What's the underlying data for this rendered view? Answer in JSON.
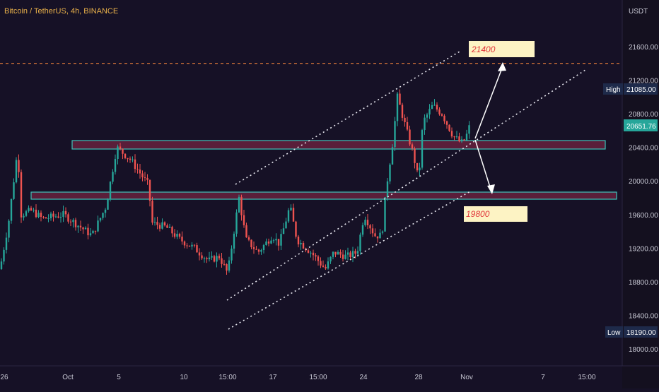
{
  "header": {
    "title": "Bitcoin / TetherUS, 4h, BINANCE"
  },
  "price_axis": {
    "currency": "USDT",
    "ticks": [
      "21600.00",
      "21200.00",
      "20800.00",
      "20400.00",
      "20000.00",
      "19600.00",
      "19200.00",
      "18800.00",
      "18400.00",
      "18000.00"
    ],
    "high_label": "High",
    "high_value": "21085.00",
    "current_value": "20651.76",
    "low_label": "Low",
    "low_value": "18190.00"
  },
  "time_axis": {
    "ticks": [
      "26",
      "Oct",
      "5",
      "10",
      "15:00",
      "17",
      "15:00",
      "24",
      "28",
      "Nov",
      "7",
      "15:00"
    ]
  },
  "annotations": {
    "target_up": "21400",
    "target_down": "19800"
  },
  "colors": {
    "background": "#161126",
    "up_candle": "#26a69a",
    "down_candle": "#ef5350",
    "zone_border": "#3fc3bb",
    "zone_fill": "#5a1e3a",
    "target_line": "#e07a3a",
    "label_bg": "#fdf3c4",
    "label_text": "#e0343a",
    "axis_text": "#c8c8d4",
    "title": "#e8b04a"
  },
  "chart_data": {
    "type": "candlestick",
    "title": "Bitcoin / TetherUS, 4h, BINANCE",
    "ylim": [
      17900,
      21950
    ],
    "y_unit": "USDT",
    "high": 21085.0,
    "low": 18190.0,
    "last": 20651.76,
    "resistance_zones": [
      [
        20360,
        20460
      ],
      [
        19760,
        19840
      ]
    ],
    "target_level": 21400,
    "channel": "ascending",
    "scenarios": [
      "bullish target 21400",
      "bearish target 19800"
    ]
  }
}
